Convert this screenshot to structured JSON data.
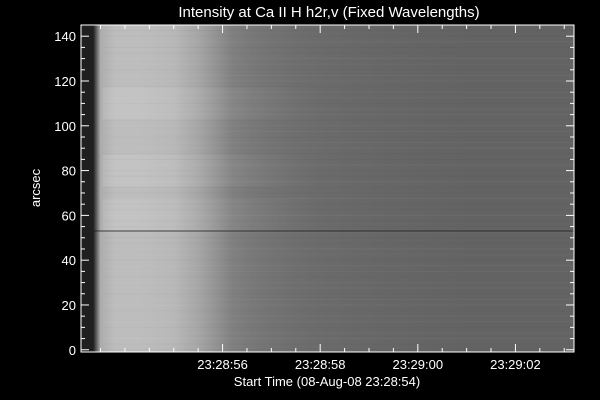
{
  "chart_data": {
    "type": "heatmap",
    "title": "Intensity at Ca II H h2r,v (Fixed Wavelengths)",
    "xlabel": "Start Time (08-Aug-08 23:28:54)",
    "ylabel": "arcsec",
    "x_tick_labels": [
      "23:28:56",
      "23:28:58",
      "23:29:00",
      "23:29:02"
    ],
    "x_tick_values_sec": [
      2,
      4,
      6,
      8
    ],
    "xlim_sec": [
      -0.9,
      9.2
    ],
    "y_tick_labels": [
      "0",
      "20",
      "40",
      "60",
      "80",
      "100",
      "120",
      "140"
    ],
    "y_tick_values": [
      0,
      20,
      40,
      60,
      80,
      100,
      120,
      140
    ],
    "ylim": [
      -1,
      145
    ],
    "colormap": "grayscale",
    "intensity_profile": {
      "time_sec": [
        -0.9,
        -0.65,
        -0.5,
        -0.2,
        0.3,
        1.0,
        1.5,
        1.9,
        2.2,
        2.6,
        3.0,
        3.5,
        4.0,
        4.5,
        5.5,
        7.0,
        9.2
      ],
      "level": [
        0.12,
        0.12,
        0.68,
        0.74,
        0.74,
        0.72,
        0.65,
        0.57,
        0.5,
        0.47,
        0.45,
        0.43,
        0.42,
        0.41,
        0.4,
        0.39,
        0.39
      ]
    },
    "bright_patches_y": [
      80,
      60,
      110
    ],
    "dark_horizontal_line_y": 53,
    "grid": false,
    "legend": "none"
  },
  "colors": {
    "background": "#000000",
    "foreground": "#ffffff"
  }
}
